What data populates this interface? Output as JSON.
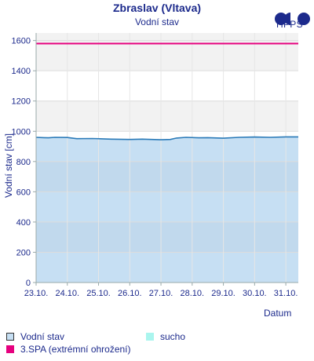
{
  "header": {
    "title": "Zbraslav (Vltava)",
    "subtitle": "Vodní stav",
    "logo_text": "HPPS"
  },
  "colors": {
    "water_fill": "#c6dff3",
    "water_line": "#2a7ab8",
    "drought": "#aaf5ee",
    "spa3": "#e6007e",
    "band_light": "#f2f2f2",
    "band_dark": "#bdd3e8"
  },
  "chart_data": {
    "type": "area",
    "ylabel": "Vodní stav [cm]",
    "xlabel": "Datum",
    "ylim": [
      0,
      1650
    ],
    "yticks": [
      0,
      200,
      400,
      600,
      800,
      1000,
      1200,
      1400,
      1600
    ],
    "xlim": [
      0,
      8.4
    ],
    "xticks": [
      "23.10.",
      "24.10.",
      "25.10.",
      "26.10.",
      "27.10.",
      "28.10.",
      "29.10.",
      "30.10.",
      "31.10."
    ],
    "series": [
      {
        "name": "Vodní stav",
        "points": [
          [
            0,
            960
          ],
          [
            0.25,
            958
          ],
          [
            0.4,
            957
          ],
          [
            0.6,
            960
          ],
          [
            1.0,
            959
          ],
          [
            1.3,
            951
          ],
          [
            1.8,
            952
          ],
          [
            2.4,
            948
          ],
          [
            3.0,
            946
          ],
          [
            3.4,
            948
          ],
          [
            4.0,
            944
          ],
          [
            4.3,
            946
          ],
          [
            4.5,
            955
          ],
          [
            4.8,
            960
          ],
          [
            5.2,
            957
          ],
          [
            5.5,
            958
          ],
          [
            6.0,
            954
          ],
          [
            6.5,
            960
          ],
          [
            7.0,
            962
          ],
          [
            7.5,
            960
          ],
          [
            8.0,
            963
          ],
          [
            8.4,
            963
          ]
        ]
      }
    ],
    "thresholds": [
      {
        "name": "3.SPA (extrémní ohrožení)",
        "value": 1580
      }
    ],
    "drought_label": "sucho",
    "grid": true,
    "legend_position": "bottom"
  },
  "legend": {
    "water": "Vodní stav",
    "drought": "sucho",
    "spa3": "3.SPA (extrémní ohrožení)"
  }
}
